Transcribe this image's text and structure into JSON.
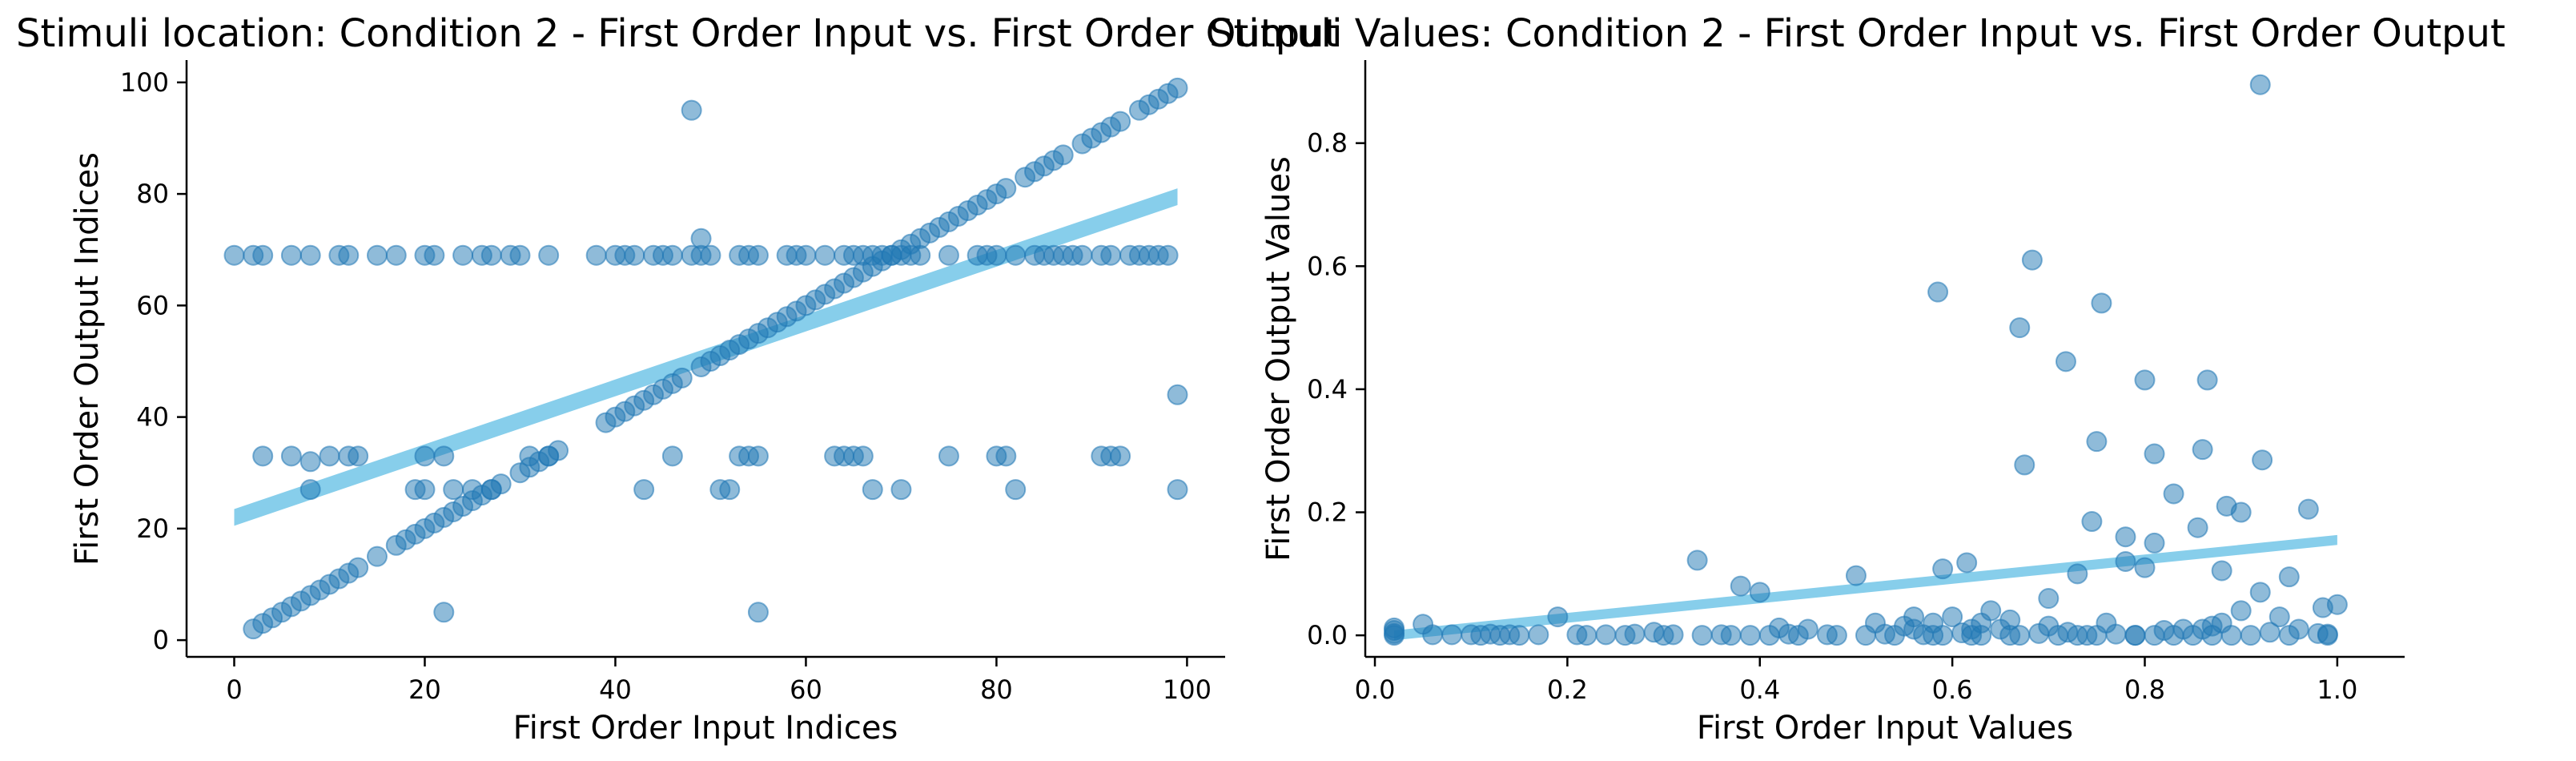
{
  "colors": {
    "points": "#1f77b4",
    "fit_band": "#87ceeb",
    "axes": "#000000"
  },
  "chart_data": [
    {
      "type": "scatter",
      "title": "Stimuli location: Condition 2 - First Order Input vs. First Order Output",
      "xlabel": "First Order Input Indices",
      "ylabel": "First Order Output Indices",
      "xlim": [
        -5,
        104
      ],
      "ylim": [
        -3,
        104
      ],
      "xticks": [
        0,
        20,
        40,
        60,
        80,
        100
      ],
      "yticks": [
        0,
        20,
        40,
        60,
        80,
        100
      ],
      "grid": false,
      "series": [
        {
          "x": [
            2,
            3,
            4,
            5,
            6,
            7,
            8,
            9,
            10,
            11,
            12,
            13,
            15,
            17,
            18,
            19,
            20,
            21,
            22,
            23,
            24,
            25,
            26,
            27,
            28,
            30,
            31,
            32,
            33,
            34,
            39,
            40,
            41,
            42,
            43,
            44,
            45,
            46,
            47,
            49,
            50,
            51,
            52,
            53,
            54,
            55,
            56,
            57,
            58,
            59,
            60,
            61,
            62,
            63,
            64,
            65,
            66,
            67,
            68,
            69,
            70,
            71,
            72,
            73,
            74,
            75,
            76,
            77,
            78,
            79,
            80,
            81,
            83,
            84,
            85,
            86,
            87,
            89,
            90,
            91,
            92,
            93,
            95,
            96,
            97,
            98,
            99,
            0,
            2,
            3,
            6,
            8,
            11,
            12,
            15,
            17,
            20,
            21,
            24,
            26,
            27,
            29,
            30,
            33,
            38,
            40,
            41,
            42,
            44,
            45,
            46,
            48,
            49,
            50,
            53,
            54,
            55,
            58,
            59,
            60,
            62,
            64,
            65,
            66,
            67,
            68,
            69,
            70,
            71,
            72,
            75,
            78,
            79,
            80,
            82,
            84,
            85,
            86,
            87,
            88,
            89,
            91,
            92,
            94,
            95,
            96,
            97,
            98,
            3,
            6,
            8,
            10,
            12,
            13,
            20,
            22,
            31,
            33,
            46,
            53,
            54,
            55,
            63,
            64,
            65,
            66,
            75,
            80,
            81,
            91,
            92,
            93,
            99,
            8,
            19,
            20,
            23,
            25,
            27,
            43,
            51,
            52,
            67,
            70,
            82,
            99,
            22,
            55,
            48,
            49
          ],
          "y": [
            2,
            3,
            4,
            5,
            6,
            7,
            8,
            9,
            10,
            11,
            12,
            13,
            15,
            17,
            18,
            19,
            20,
            21,
            22,
            23,
            24,
            25,
            26,
            27,
            28,
            30,
            31,
            32,
            33,
            34,
            39,
            40,
            41,
            42,
            43,
            44,
            45,
            46,
            47,
            49,
            50,
            51,
            52,
            53,
            54,
            55,
            56,
            57,
            58,
            59,
            60,
            61,
            62,
            63,
            64,
            65,
            66,
            67,
            68,
            69,
            70,
            71,
            72,
            73,
            74,
            75,
            76,
            77,
            78,
            79,
            80,
            81,
            83,
            84,
            85,
            86,
            87,
            89,
            90,
            91,
            92,
            93,
            95,
            96,
            97,
            98,
            99,
            69,
            69,
            69,
            69,
            69,
            69,
            69,
            69,
            69,
            69,
            69,
            69,
            69,
            69,
            69,
            69,
            69,
            69,
            69,
            69,
            69,
            69,
            69,
            69,
            69,
            69,
            69,
            69,
            69,
            69,
            69,
            69,
            69,
            69,
            69,
            69,
            69,
            69,
            69,
            69,
            69,
            69,
            69,
            69,
            69,
            69,
            69,
            69,
            69,
            69,
            69,
            69,
            69,
            69,
            69,
            69,
            69,
            69,
            69,
            69,
            69,
            33,
            33,
            32,
            33,
            33,
            33,
            33,
            33,
            33,
            33,
            33,
            33,
            33,
            33,
            33,
            33,
            33,
            33,
            33,
            33,
            33,
            33,
            33,
            33,
            44,
            27,
            27,
            27,
            27,
            27,
            27,
            27,
            27,
            27,
            27,
            27,
            27,
            27,
            5,
            5,
            95,
            72
          ]
        }
      ],
      "fit": {
        "x_start": 0,
        "y_start": 22,
        "x_end": 99,
        "y_end": 79.5,
        "band_halfwidth": 1.5
      }
    },
    {
      "type": "scatter",
      "title": "Stimuli Values: Condition 2 - First Order Input vs. First Order Output",
      "xlabel": "First Order Input Values",
      "ylabel": "First Order Output Values",
      "xlim": [
        -0.01,
        1.07
      ],
      "ylim": [
        -0.035,
        0.935
      ],
      "xticks": [
        0.0,
        0.2,
        0.4,
        0.6,
        0.8,
        1.0
      ],
      "yticks": [
        0.0,
        0.2,
        0.4,
        0.6,
        0.8
      ],
      "grid": false,
      "series": [
        {
          "x": [
            0.92,
            0.585,
            0.683,
            0.755,
            0.675,
            0.718,
            0.8,
            0.865,
            0.86,
            0.81,
            0.922,
            0.67,
            0.83,
            0.885,
            0.9,
            0.97,
            0.75,
            0.78,
            0.855,
            0.81,
            0.745,
            0.335,
            0.615,
            0.5,
            0.38,
            0.4,
            0.59,
            0.88,
            0.95,
            0.92,
            0.7,
            0.9,
            0.94,
            0.985,
            1.0,
            0.99,
            0.78,
            0.8,
            0.73,
            0.45,
            0.52,
            0.55,
            0.6,
            0.66,
            0.62,
            0.58,
            0.56,
            0.7,
            0.76,
            0.84,
            0.87,
            0.64,
            0.05,
            0.19,
            0.42,
            0.29,
            0.56,
            0.63,
            0.65,
            0.72,
            0.82,
            0.86,
            0.93,
            0.96,
            0.98,
            0.88,
            0.77,
            0.69,
            0.61,
            0.57,
            0.53,
            0.47,
            0.43,
            0.36,
            0.31,
            0.27,
            0.24,
            0.21,
            0.17,
            0.14,
            0.12,
            0.1,
            0.08,
            0.06,
            0.02,
            0.02,
            0.02,
            0.02,
            0.11,
            0.13,
            0.15,
            0.22,
            0.26,
            0.3,
            0.34,
            0.37,
            0.39,
            0.41,
            0.44,
            0.48,
            0.51,
            0.54,
            0.59,
            0.62,
            0.67,
            0.71,
            0.74,
            0.79,
            0.83,
            0.89,
            0.91,
            0.95,
            0.99,
            0.85,
            0.81,
            0.87,
            0.79,
            0.75,
            0.73,
            0.66,
            0.58,
            0.63
          ],
          "y": [
            0.895,
            0.558,
            0.61,
            0.54,
            0.277,
            0.445,
            0.415,
            0.415,
            0.302,
            0.295,
            0.285,
            0.5,
            0.23,
            0.21,
            0.2,
            0.205,
            0.315,
            0.16,
            0.175,
            0.15,
            0.185,
            0.122,
            0.118,
            0.097,
            0.08,
            0.07,
            0.108,
            0.105,
            0.095,
            0.07,
            0.06,
            0.04,
            0.03,
            0.045,
            0.05,
            0.002,
            0.12,
            0.11,
            0.1,
            0.01,
            0.02,
            0.015,
            0.03,
            0.025,
            0.01,
            0.02,
            0.03,
            0.015,
            0.02,
            0.01,
            0.015,
            0.04,
            0.018,
            0.03,
            0.012,
            0.005,
            0.01,
            0.02,
            0.01,
            0.005,
            0.008,
            0.01,
            0.005,
            0.01,
            0.003,
            0.02,
            0.002,
            0.003,
            0.004,
            0.001,
            0.002,
            0.001,
            0.002,
            0.001,
            0.001,
            0.002,
            0.001,
            0.001,
            0.001,
            0.001,
            0.002,
            0.001,
            0.001,
            0.001,
            0.0,
            0.003,
            0.008,
            0.012,
            0.0,
            0.0,
            0.0,
            0.0,
            0.0,
            0.0,
            0.0,
            0.0,
            0.0,
            0.0,
            0.0,
            0.0,
            0.0,
            0.0,
            0.0,
            0.0,
            0.0,
            0.0,
            0.0,
            0.0,
            0.0,
            0.0,
            0.0,
            0.0,
            0.0,
            0.0,
            0.0,
            0.0,
            0.0,
            0.0,
            0.0,
            0.0,
            0.0,
            0.0
          ]
        }
      ],
      "fit": {
        "x_start": 0.02,
        "y_start": 0.0,
        "x_end": 1.0,
        "y_end": 0.155,
        "band_halfwidth": 0.008
      }
    }
  ]
}
